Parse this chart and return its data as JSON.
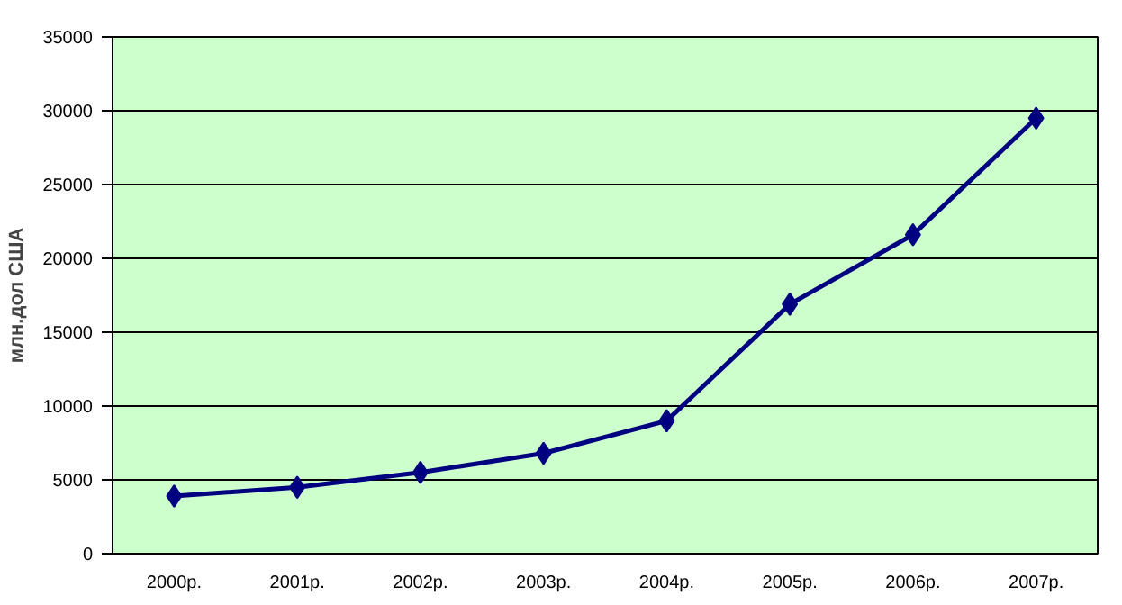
{
  "chart_data": {
    "type": "line",
    "ylabel": "млн.дол США",
    "categories": [
      "2000р.",
      "2001р.",
      "2002р.",
      "2003р.",
      "2004р.",
      "2005р.",
      "2006р.",
      "2007р."
    ],
    "series": [
      {
        "color": "#000080",
        "values": [
          3900,
          4500,
          5500,
          6800,
          9000,
          16900,
          21600,
          29500
        ]
      }
    ],
    "ylim": [
      0,
      35000
    ],
    "yticks": [
      0,
      5000,
      10000,
      15000,
      20000,
      25000,
      30000,
      35000
    ],
    "grid": "y",
    "marker": "diamond",
    "line_style": "solid"
  }
}
